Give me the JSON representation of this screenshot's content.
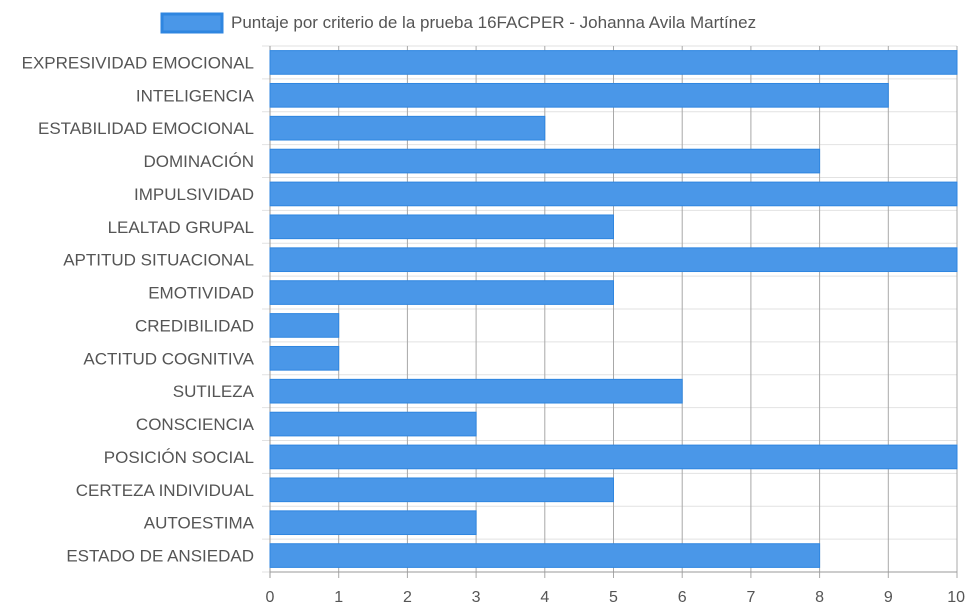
{
  "chart_data": {
    "type": "bar",
    "orientation": "horizontal",
    "categories": [
      "EXPRESIVIDAD EMOCIONAL",
      "INTELIGENCIA",
      "ESTABILIDAD EMOCIONAL",
      "DOMINACIÓN",
      "IMPULSIVIDAD",
      "LEALTAD GRUPAL",
      "APTITUD SITUACIONAL",
      "EMOTIVIDAD",
      "CREDIBILIDAD",
      "ACTITUD COGNITIVA",
      "SUTILEZA",
      "CONSCIENCIA",
      "POSICIÓN SOCIAL",
      "CERTEZA INDIVIDUAL",
      "AUTOESTIMA",
      "ESTADO DE ANSIEDAD"
    ],
    "series": [
      {
        "name": "Puntaje por criterio de la prueba 16FACPER - Johanna Avila Martínez",
        "values": [
          10,
          9,
          4,
          8,
          10,
          5,
          10,
          5,
          1,
          1,
          6,
          3,
          10,
          5,
          3,
          8
        ]
      }
    ],
    "xlim": [
      0,
      10
    ],
    "x_ticks": [
      "0",
      "1",
      "2",
      "3",
      "4",
      "5",
      "6",
      "7",
      "8",
      "9",
      "10"
    ],
    "grid": true,
    "legend_position": "top",
    "colors": {
      "bar_fill": "#4a97e8",
      "bar_stroke": "#2f86e0",
      "grid": "#e2e2e2",
      "axis": "#9a9a9a",
      "label": "#555555"
    }
  }
}
